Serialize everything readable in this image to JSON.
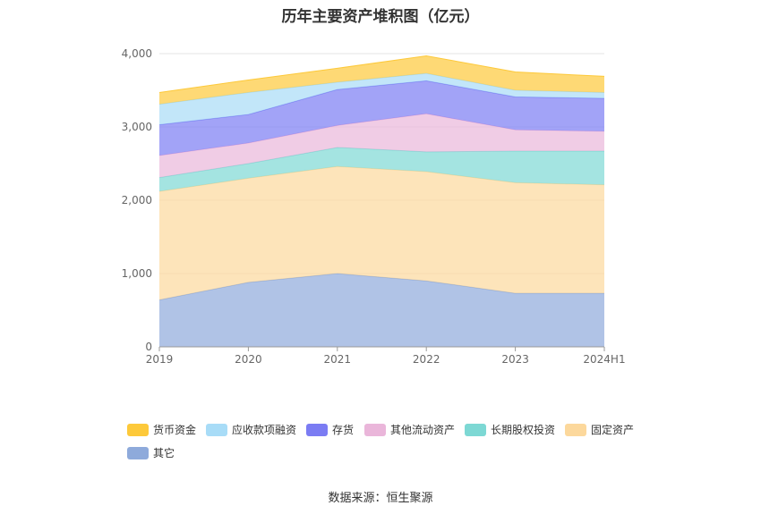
{
  "title": "历年主要资产堆积图（亿元）",
  "source": "数据来源：恒生聚源",
  "chart_data": {
    "type": "area",
    "stacked": true,
    "title": "历年主要资产堆积图（亿元）",
    "categories": [
      "2019",
      "2020",
      "2021",
      "2022",
      "2023",
      "2024H1"
    ],
    "y_ticks": [
      "0",
      "1,000",
      "2,000",
      "3,000",
      "4,000"
    ],
    "ylim": [
      0,
      4000
    ],
    "grid": true,
    "legend_position": "bottom",
    "series": [
      {
        "name": "其它",
        "color": "#8eaadb",
        "values": [
          640,
          880,
          1000,
          900,
          730,
          730
        ]
      },
      {
        "name": "固定资产",
        "color": "#fcd89c",
        "values": [
          1480,
          1420,
          1460,
          1490,
          1510,
          1480
        ]
      },
      {
        "name": "长期股权投资",
        "color": "#7dd8d4",
        "values": [
          190,
          200,
          260,
          270,
          430,
          460
        ]
      },
      {
        "name": "其他流动资产",
        "color": "#eab6da",
        "values": [
          300,
          280,
          300,
          520,
          290,
          270
        ]
      },
      {
        "name": "存货",
        "color": "#7b7cf3",
        "values": [
          420,
          390,
          490,
          450,
          450,
          450
        ]
      },
      {
        "name": "应收款项融资",
        "color": "#a8dcf7",
        "values": [
          280,
          300,
          100,
          100,
          90,
          80
        ]
      },
      {
        "name": "货币资金",
        "color": "#fdc93a",
        "values": [
          160,
          170,
          190,
          240,
          250,
          220
        ]
      }
    ]
  },
  "legend_order": [
    "货币资金",
    "应收款项融资",
    "存货",
    "其他流动资产",
    "长期股权投资",
    "固定资产",
    "其它"
  ]
}
